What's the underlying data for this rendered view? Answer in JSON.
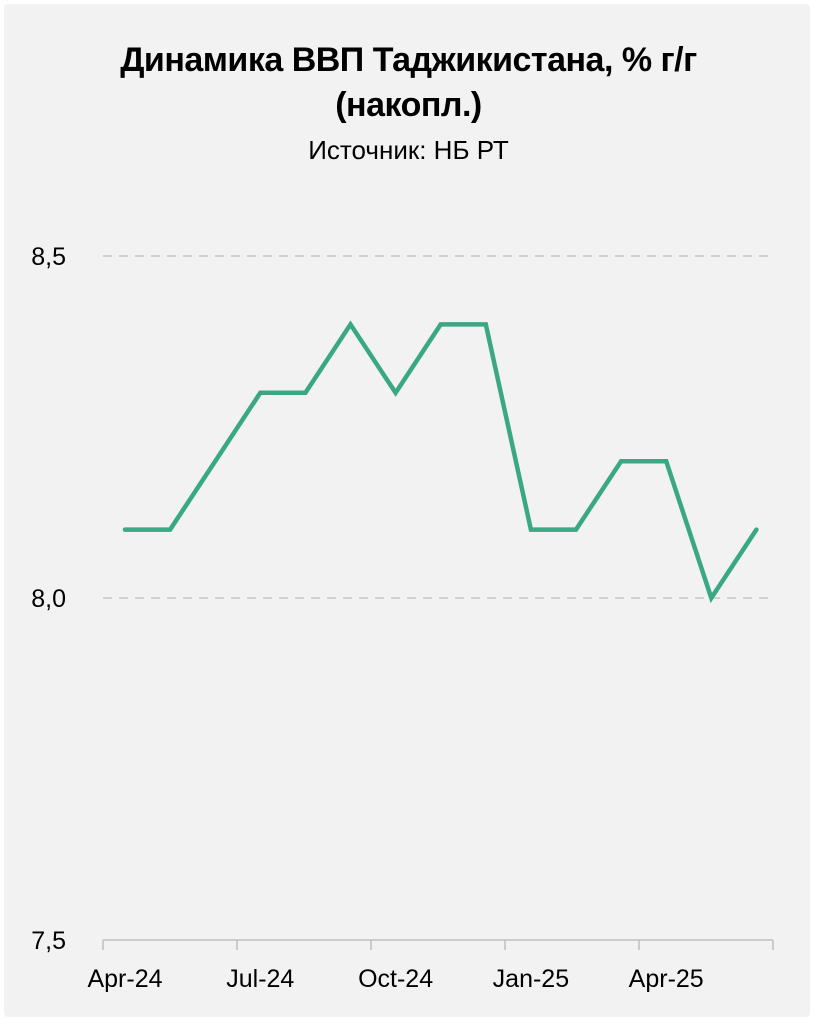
{
  "chart_data": {
    "type": "line",
    "title": "Динамика ВВП Таджикистана, % г/г (накопл.)",
    "subtitle": "Источник: НБ РТ",
    "xlabel": "",
    "ylabel": "",
    "ylim": [
      7.5,
      8.5
    ],
    "yticks": [
      "8,5",
      "8,0",
      "7,5"
    ],
    "ytick_values": [
      8.5,
      8.0,
      7.5
    ],
    "xticks": [
      "Apr-24",
      "Jul-24",
      "Oct-24",
      "Jan-25",
      "Apr-25"
    ],
    "grid": "dashed horizontal",
    "line_color": "#3aa884",
    "x": [
      "Apr-24",
      "May-24",
      "Jun-24",
      "Jul-24",
      "Aug-24",
      "Sep-24",
      "Oct-24",
      "Nov-24",
      "Dec-24",
      "Jan-25",
      "Feb-25",
      "Mar-25",
      "Apr-25",
      "May-25",
      "Jun-25"
    ],
    "series": [
      {
        "values": [
          8.1,
          8.1,
          8.2,
          8.3,
          8.3,
          8.4,
          8.3,
          8.4,
          8.4,
          8.1,
          8.1,
          8.2,
          8.2,
          8.0,
          8.1
        ]
      }
    ]
  }
}
